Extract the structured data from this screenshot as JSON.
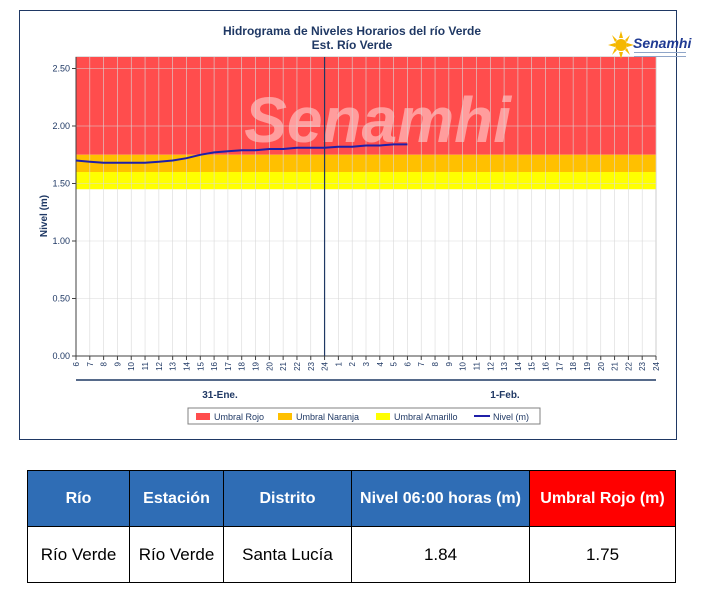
{
  "chart_data": {
    "type": "line",
    "title": "Hidrograma de Niveles Horarios del río Verde",
    "subtitle": "Est. Río Verde",
    "ylabel": "Nivel (m)",
    "ylim": [
      0,
      2.6
    ],
    "yticks": [
      "0.00",
      "0.50",
      "1.00",
      "1.50",
      "2.00",
      "2.50"
    ],
    "x_tick_labels": [
      "6",
      "7",
      "8",
      "9",
      "10",
      "11",
      "12",
      "13",
      "14",
      "15",
      "16",
      "17",
      "18",
      "19",
      "20",
      "21",
      "22",
      "23",
      "24",
      "1",
      "2",
      "3",
      "4",
      "5",
      "6",
      "7",
      "8",
      "9",
      "10",
      "11",
      "12",
      "13",
      "14",
      "15",
      "16",
      "17",
      "18",
      "19",
      "20",
      "21",
      "22",
      "23",
      "24"
    ],
    "day_labels": [
      "31-Ene.",
      "1-Feb."
    ],
    "thresholds": [
      {
        "name": "Umbral Rojo",
        "from": 1.75,
        "to": 2.6,
        "color": "#ff4d4d"
      },
      {
        "name": "Umbral Naranja",
        "from": 1.6,
        "to": 1.75,
        "color": "#ffc000"
      },
      {
        "name": "Umbral Amarillo",
        "from": 1.45,
        "to": 1.6,
        "color": "#ffff00"
      }
    ],
    "series": [
      {
        "name": "Nivel (m)",
        "color": "#1f1fa8",
        "x": [
          0,
          1,
          2,
          3,
          4,
          5,
          6,
          7,
          8,
          9,
          10,
          11,
          12,
          13,
          14,
          15,
          16,
          17,
          18,
          19,
          20,
          21,
          22,
          23,
          24
        ],
        "values": [
          1.7,
          1.69,
          1.68,
          1.68,
          1.68,
          1.68,
          1.69,
          1.7,
          1.72,
          1.75,
          1.77,
          1.78,
          1.79,
          1.79,
          1.8,
          1.8,
          1.81,
          1.81,
          1.81,
          1.82,
          1.82,
          1.83,
          1.83,
          1.84,
          1.84
        ]
      }
    ],
    "current_time_index": 18,
    "legend": [
      "Umbral Rojo",
      "Umbral Naranja",
      "Umbral Amarillo",
      "Nivel (m)"
    ],
    "legend_position": "bottom",
    "watermark": "Senamhi"
  },
  "logo": {
    "text": "Senamhi"
  },
  "table": {
    "headers": [
      "Río",
      "Estación",
      "Distrito",
      "Nivel  06:00 horas (m)",
      "Umbral Rojo (m)"
    ],
    "row": [
      "Río Verde",
      "Río Verde",
      "Santa Lucía",
      "1.84",
      "1.75"
    ]
  }
}
